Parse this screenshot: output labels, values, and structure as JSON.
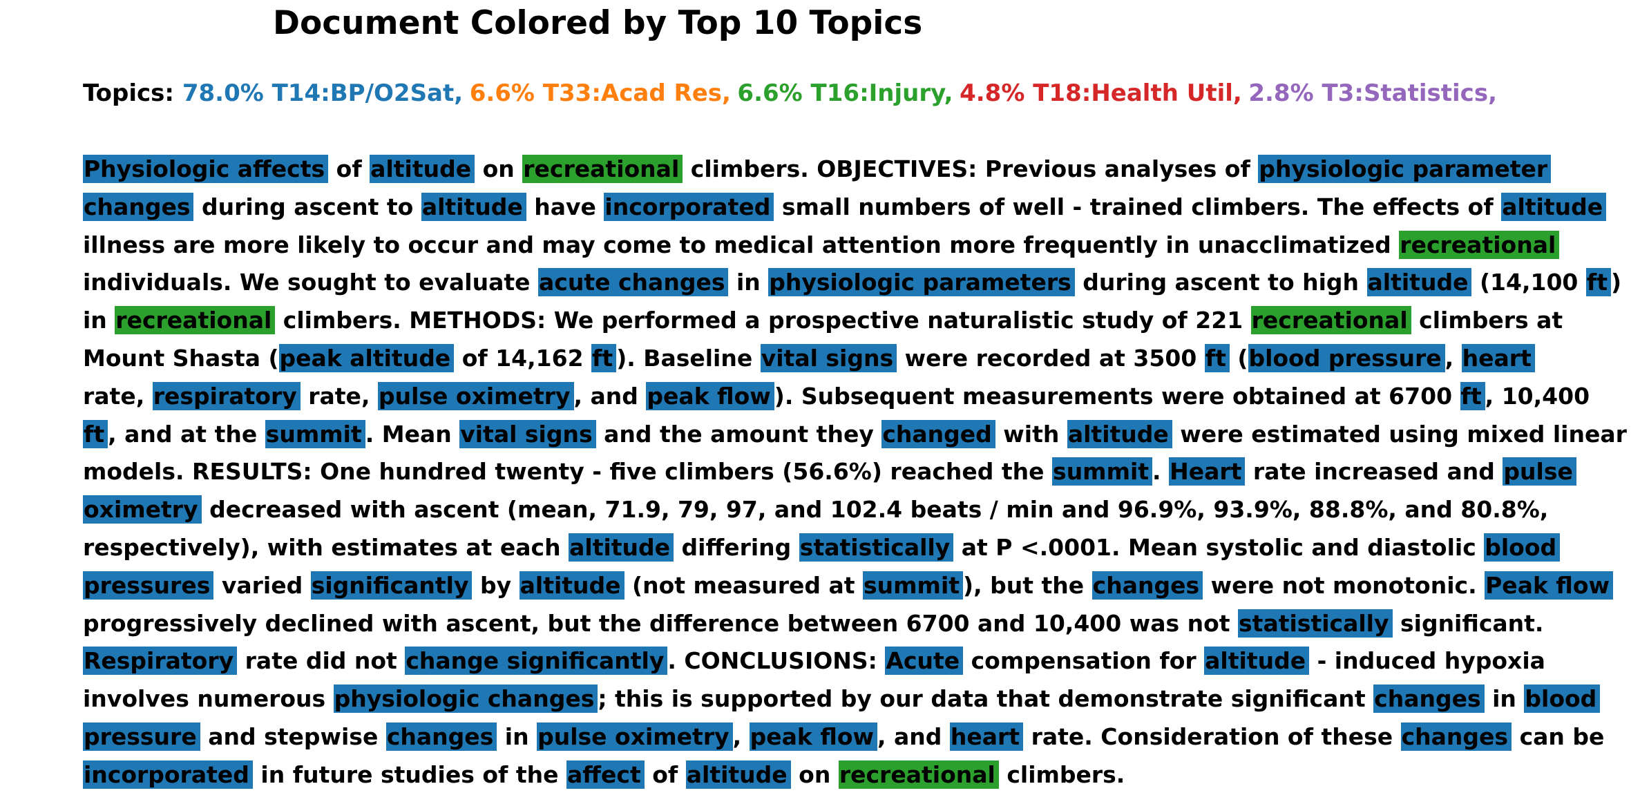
{
  "title": "Document Colored by Top 10 Topics",
  "topics_label": "Topics:",
  "topics": [
    {
      "text": "78.0% T14:BP/O2Sat,",
      "color": "#1f77b4"
    },
    {
      "text": "6.6% T33:Acad Res,",
      "color": "#ff7f0e"
    },
    {
      "text": "6.6% T16:Injury,",
      "color": "#2ca02c"
    },
    {
      "text": "4.8% T18:Health Util,",
      "color": "#d62728"
    },
    {
      "text": "2.8% T3:Statistics,",
      "color": "#9467bd"
    }
  ],
  "topic_colors": {
    "T14": "#1f77b4",
    "T16": "#2ca02c"
  },
  "lines": [
    [
      {
        "t": "Physiologic affects",
        "k": "T14"
      },
      {
        "t": " of "
      },
      {
        "t": "altitude",
        "k": "T14"
      },
      {
        "t": " on "
      },
      {
        "t": "recreational",
        "k": "T16"
      },
      {
        "t": " climbers. OBJECTIVES: Previous analyses of "
      },
      {
        "t": "physiologic parameter",
        "k": "T14"
      }
    ],
    [
      {
        "t": "changes",
        "k": "T14"
      },
      {
        "t": " during ascent to "
      },
      {
        "t": "altitude",
        "k": "T14"
      },
      {
        "t": " have "
      },
      {
        "t": "incorporated",
        "k": "T14"
      },
      {
        "t": " small numbers of well - trained climbers. The effects of "
      },
      {
        "t": "altitude",
        "k": "T14"
      }
    ],
    [
      {
        "t": "illness are more likely to occur and may come to medical attention more frequently in unacclimatized "
      },
      {
        "t": "recreational",
        "k": "T16"
      }
    ],
    [
      {
        "t": "individuals. We sought to evaluate "
      },
      {
        "t": "acute changes",
        "k": "T14"
      },
      {
        "t": " in "
      },
      {
        "t": "physiologic parameters",
        "k": "T14"
      },
      {
        "t": " during ascent to high "
      },
      {
        "t": "altitude",
        "k": "T14"
      },
      {
        "t": " (14,100 "
      },
      {
        "t": "ft",
        "k": "T14"
      },
      {
        "t": ")"
      }
    ],
    [
      {
        "t": "in "
      },
      {
        "t": "recreational",
        "k": "T16"
      },
      {
        "t": " climbers. METHODS: We performed a prospective naturalistic study of 221 "
      },
      {
        "t": "recreational",
        "k": "T16"
      },
      {
        "t": " climbers at"
      }
    ],
    [
      {
        "t": "Mount Shasta ("
      },
      {
        "t": "peak altitude",
        "k": "T14"
      },
      {
        "t": " of 14,162 "
      },
      {
        "t": "ft",
        "k": "T14"
      },
      {
        "t": "). Baseline "
      },
      {
        "t": "vital signs",
        "k": "T14"
      },
      {
        "t": " were recorded at 3500 "
      },
      {
        "t": "ft",
        "k": "T14"
      },
      {
        "t": " ("
      },
      {
        "t": "blood pressure",
        "k": "T14"
      },
      {
        "t": ", "
      },
      {
        "t": "heart",
        "k": "T14"
      }
    ],
    [
      {
        "t": "rate, "
      },
      {
        "t": "respiratory",
        "k": "T14"
      },
      {
        "t": " rate, "
      },
      {
        "t": "pulse oximetry",
        "k": "T14"
      },
      {
        "t": ", and "
      },
      {
        "t": "peak flow",
        "k": "T14"
      },
      {
        "t": "). Subsequent measurements were obtained at 6700 "
      },
      {
        "t": "ft",
        "k": "T14"
      },
      {
        "t": ", 10,400"
      }
    ],
    [
      {
        "t": "ft",
        "k": "T14"
      },
      {
        "t": ", and at the "
      },
      {
        "t": "summit",
        "k": "T14"
      },
      {
        "t": ". Mean "
      },
      {
        "t": "vital signs",
        "k": "T14"
      },
      {
        "t": " and the amount they "
      },
      {
        "t": "changed",
        "k": "T14"
      },
      {
        "t": " with "
      },
      {
        "t": "altitude",
        "k": "T14"
      },
      {
        "t": " were estimated using mixed linear"
      }
    ],
    [
      {
        "t": "models. RESULTS: One hundred twenty - five climbers (56.6%) reached the "
      },
      {
        "t": "summit",
        "k": "T14"
      },
      {
        "t": ". "
      },
      {
        "t": "Heart",
        "k": "T14"
      },
      {
        "t": " rate increased and "
      },
      {
        "t": "pulse",
        "k": "T14"
      }
    ],
    [
      {
        "t": "oximetry",
        "k": "T14"
      },
      {
        "t": " decreased with ascent (mean, 71.9, 79, 97, and 102.4 beats / min and 96.9%, 93.9%, 88.8%, and 80.8%,"
      }
    ],
    [
      {
        "t": "respectively), with estimates at each "
      },
      {
        "t": "altitude",
        "k": "T14"
      },
      {
        "t": " differing "
      },
      {
        "t": "statistically",
        "k": "T14"
      },
      {
        "t": " at P <.0001. Mean systolic and diastolic "
      },
      {
        "t": "blood",
        "k": "T14"
      }
    ],
    [
      {
        "t": "pressures",
        "k": "T14"
      },
      {
        "t": " varied "
      },
      {
        "t": "significantly",
        "k": "T14"
      },
      {
        "t": " by "
      },
      {
        "t": "altitude",
        "k": "T14"
      },
      {
        "t": " (not measured at "
      },
      {
        "t": "summit",
        "k": "T14"
      },
      {
        "t": "), but the "
      },
      {
        "t": "changes",
        "k": "T14"
      },
      {
        "t": " were not monotonic. "
      },
      {
        "t": "Peak flow",
        "k": "T14"
      }
    ],
    [
      {
        "t": "progressively declined with ascent, but the difference between 6700 and 10,400 was not "
      },
      {
        "t": "statistically",
        "k": "T14"
      },
      {
        "t": " significant."
      }
    ],
    [
      {
        "t": "Respiratory",
        "k": "T14"
      },
      {
        "t": " rate did not "
      },
      {
        "t": "change significantly",
        "k": "T14"
      },
      {
        "t": ". CONCLUSIONS: "
      },
      {
        "t": "Acute",
        "k": "T14"
      },
      {
        "t": " compensation for "
      },
      {
        "t": "altitude",
        "k": "T14"
      },
      {
        "t": " - induced hypoxia"
      }
    ],
    [
      {
        "t": "involves numerous "
      },
      {
        "t": "physiologic changes",
        "k": "T14"
      },
      {
        "t": "; this is supported by our data that demonstrate significant "
      },
      {
        "t": "changes",
        "k": "T14"
      },
      {
        "t": " in "
      },
      {
        "t": "blood",
        "k": "T14"
      }
    ],
    [
      {
        "t": "pressure",
        "k": "T14"
      },
      {
        "t": " and stepwise "
      },
      {
        "t": "changes",
        "k": "T14"
      },
      {
        "t": " in "
      },
      {
        "t": "pulse oximetry",
        "k": "T14"
      },
      {
        "t": ", "
      },
      {
        "t": "peak flow",
        "k": "T14"
      },
      {
        "t": ", and "
      },
      {
        "t": "heart",
        "k": "T14"
      },
      {
        "t": " rate. Consideration of these "
      },
      {
        "t": "changes",
        "k": "T14"
      },
      {
        "t": " can be"
      }
    ],
    [
      {
        "t": "incorporated",
        "k": "T14"
      },
      {
        "t": " in future studies of the "
      },
      {
        "t": "affect",
        "k": "T14"
      },
      {
        "t": " of "
      },
      {
        "t": "altitude",
        "k": "T14"
      },
      {
        "t": " on "
      },
      {
        "t": "recreational",
        "k": "T16"
      },
      {
        "t": " climbers."
      }
    ]
  ]
}
